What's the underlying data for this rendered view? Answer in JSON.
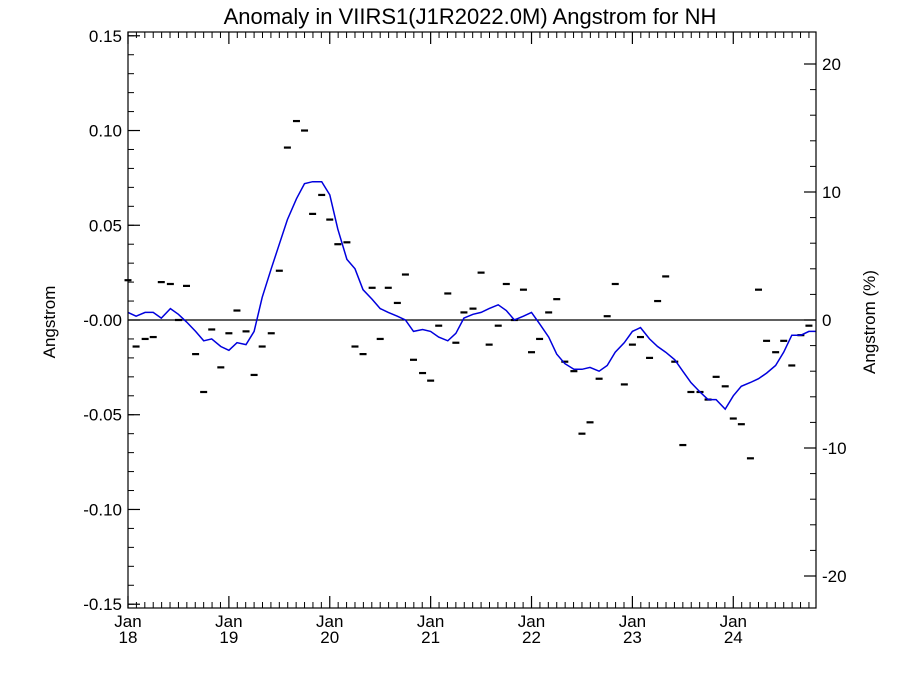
{
  "chart_data": {
    "type": "line",
    "title": "Anomaly in VIIRS1(J1R2022.0M) Angstrom for NH",
    "ylabel": "Angstrom",
    "ylabel_right": "Angstrom (%)",
    "ylim": [
      -0.152,
      0.152
    ],
    "y_ticks": [
      "0.15",
      "0.10",
      "0.05",
      "-0.00",
      "-0.05",
      "-0.10",
      "-0.15"
    ],
    "y_tick_values": [
      0.15,
      0.1,
      0.05,
      0.0,
      -0.05,
      -0.1,
      -0.15
    ],
    "y2lim": [
      -22.5,
      22.5
    ],
    "y2_ticks": [
      "20",
      "10",
      "0",
      "-10",
      "-20"
    ],
    "y2_tick_values": [
      20,
      10,
      0,
      -10,
      -20
    ],
    "xlim": [
      2018.0,
      2024.82
    ],
    "x_ticks": [
      {
        "month": "Jan",
        "year": "18",
        "value": 2018
      },
      {
        "month": "Jan",
        "year": "19",
        "value": 2019
      },
      {
        "month": "Jan",
        "year": "20",
        "value": 2020
      },
      {
        "month": "Jan",
        "year": "21",
        "value": 2021
      },
      {
        "month": "Jan",
        "year": "22",
        "value": 2022
      },
      {
        "month": "Jan",
        "year": "23",
        "value": 2023
      },
      {
        "month": "Jan",
        "year": "24",
        "value": 2024
      }
    ],
    "zero_line": 0,
    "line_color": "#0000dd",
    "marker_color": "#000000",
    "series": [
      {
        "kind": "markers",
        "x": [
          2018.0,
          2018.08,
          2018.17,
          2018.25,
          2018.33,
          2018.42,
          2018.5,
          2018.58,
          2018.67,
          2018.75,
          2018.83,
          2018.92,
          2019.0,
          2019.08,
          2019.17,
          2019.25,
          2019.33,
          2019.42,
          2019.5,
          2019.58,
          2019.67,
          2019.75,
          2019.83,
          2019.92,
          2020.0,
          2020.08,
          2020.17,
          2020.25,
          2020.33,
          2020.42,
          2020.5,
          2020.58,
          2020.67,
          2020.75,
          2020.83,
          2020.92,
          2021.0,
          2021.08,
          2021.17,
          2021.25,
          2021.33,
          2021.42,
          2021.5,
          2021.58,
          2021.67,
          2021.75,
          2021.83,
          2021.92,
          2022.0,
          2022.08,
          2022.17,
          2022.25,
          2022.33,
          2022.42,
          2022.5,
          2022.58,
          2022.67,
          2022.75,
          2022.83,
          2022.92,
          2023.0,
          2023.08,
          2023.17,
          2023.25,
          2023.33,
          2023.42,
          2023.5,
          2023.58,
          2023.67,
          2023.75,
          2023.83,
          2023.92,
          2024.0,
          2024.08,
          2024.17,
          2024.25,
          2024.33,
          2024.42,
          2024.5,
          2024.58,
          2024.67,
          2024.75
        ],
        "y": [
          0.021,
          -0.014,
          -0.01,
          -0.009,
          0.02,
          0.019,
          0.0,
          0.018,
          -0.018,
          -0.038,
          -0.005,
          -0.025,
          -0.007,
          0.005,
          -0.006,
          -0.029,
          -0.014,
          -0.007,
          0.026,
          0.091,
          0.105,
          0.1,
          0.056,
          0.066,
          0.053,
          0.04,
          0.041,
          -0.014,
          -0.018,
          0.017,
          -0.01,
          0.017,
          0.009,
          0.024,
          -0.021,
          -0.028,
          -0.032,
          -0.003,
          0.014,
          -0.012,
          0.004,
          0.006,
          0.025,
          -0.013,
          -0.003,
          0.019,
          0.0,
          0.016,
          -0.017,
          -0.01,
          0.004,
          0.011,
          -0.022,
          -0.027,
          -0.06,
          -0.054,
          -0.031,
          0.002,
          0.019,
          -0.034,
          -0.013,
          -0.009,
          -0.02,
          0.01,
          0.023,
          -0.022,
          -0.066,
          -0.038,
          -0.038,
          -0.042,
          -0.03,
          -0.035,
          -0.052,
          -0.055,
          -0.073,
          0.016,
          -0.011,
          -0.017,
          -0.011,
          -0.024,
          -0.008,
          -0.003
        ]
      },
      {
        "kind": "line",
        "x": [
          2018.0,
          2018.08,
          2018.17,
          2018.25,
          2018.33,
          2018.42,
          2018.5,
          2018.58,
          2018.67,
          2018.75,
          2018.83,
          2018.92,
          2019.0,
          2019.08,
          2019.17,
          2019.25,
          2019.33,
          2019.42,
          2019.5,
          2019.58,
          2019.67,
          2019.75,
          2019.83,
          2019.92,
          2020.0,
          2020.08,
          2020.17,
          2020.25,
          2020.33,
          2020.42,
          2020.5,
          2020.58,
          2020.67,
          2020.75,
          2020.83,
          2020.92,
          2021.0,
          2021.08,
          2021.17,
          2021.25,
          2021.33,
          2021.42,
          2021.5,
          2021.58,
          2021.67,
          2021.75,
          2021.83,
          2021.92,
          2022.0,
          2022.08,
          2022.17,
          2022.25,
          2022.33,
          2022.42,
          2022.5,
          2022.58,
          2022.67,
          2022.75,
          2022.83,
          2022.92,
          2023.0,
          2023.08,
          2023.17,
          2023.25,
          2023.33,
          2023.42,
          2023.5,
          2023.58,
          2023.67,
          2023.75,
          2023.83,
          2023.92,
          2024.0,
          2024.08,
          2024.17,
          2024.25,
          2024.33,
          2024.42,
          2024.5,
          2024.58,
          2024.67,
          2024.75,
          2024.82
        ],
        "y": [
          0.004,
          0.002,
          0.004,
          0.004,
          0.001,
          0.006,
          0.003,
          -0.001,
          -0.006,
          -0.011,
          -0.01,
          -0.014,
          -0.016,
          -0.012,
          -0.013,
          -0.006,
          0.012,
          0.027,
          0.04,
          0.053,
          0.064,
          0.072,
          0.073,
          0.073,
          0.066,
          0.048,
          0.032,
          0.027,
          0.016,
          0.011,
          0.006,
          0.004,
          0.002,
          0.0,
          -0.006,
          -0.005,
          -0.006,
          -0.009,
          -0.011,
          -0.007,
          0.001,
          0.003,
          0.004,
          0.006,
          0.008,
          0.005,
          0.0,
          0.002,
          0.004,
          -0.002,
          -0.009,
          -0.018,
          -0.023,
          -0.026,
          -0.026,
          -0.025,
          -0.027,
          -0.024,
          -0.017,
          -0.012,
          -0.006,
          -0.004,
          -0.01,
          -0.014,
          -0.017,
          -0.021,
          -0.027,
          -0.033,
          -0.038,
          -0.042,
          -0.042,
          -0.047,
          -0.04,
          -0.035,
          -0.033,
          -0.031,
          -0.028,
          -0.024,
          -0.017,
          -0.008,
          -0.008,
          -0.006,
          -0.006
        ]
      }
    ]
  }
}
